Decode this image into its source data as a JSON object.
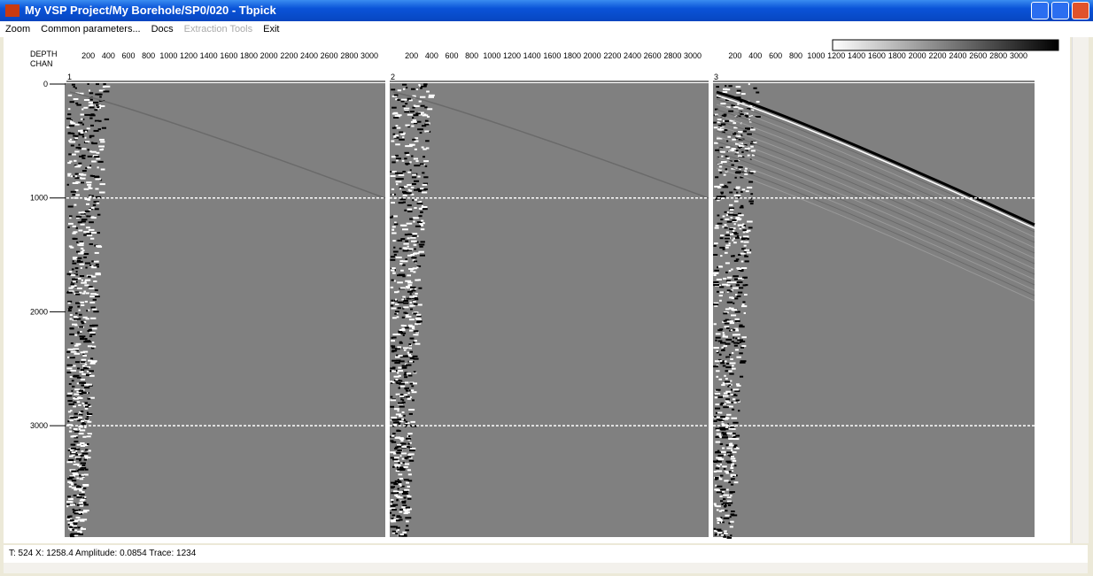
{
  "window": {
    "title": "My VSP Project/My Borehole/SP0/020 - Tbpick"
  },
  "menu": [
    {
      "label": "Zoom"
    },
    {
      "label": "Common parameters..."
    },
    {
      "label": "Docs"
    },
    {
      "label": "Extraction Tools",
      "disabled": true
    },
    {
      "label": "Exit"
    }
  ],
  "axis": {
    "depth_label": "DEPTH",
    "chan_label": "CHAN",
    "depth_ticks": [
      0,
      1000,
      2000,
      3000
    ],
    "offset_ticks": [
      200,
      400,
      600,
      800,
      1000,
      1200,
      1400,
      1600,
      1800,
      2000,
      2200,
      2400,
      2600,
      2800,
      3000
    ]
  },
  "panels": [
    {
      "number": 1
    },
    {
      "number": 2
    },
    {
      "number": 3
    }
  ],
  "status": "T: 524   X: 1258.4   Amplitude: 0.0854   Trace: 1234"
}
